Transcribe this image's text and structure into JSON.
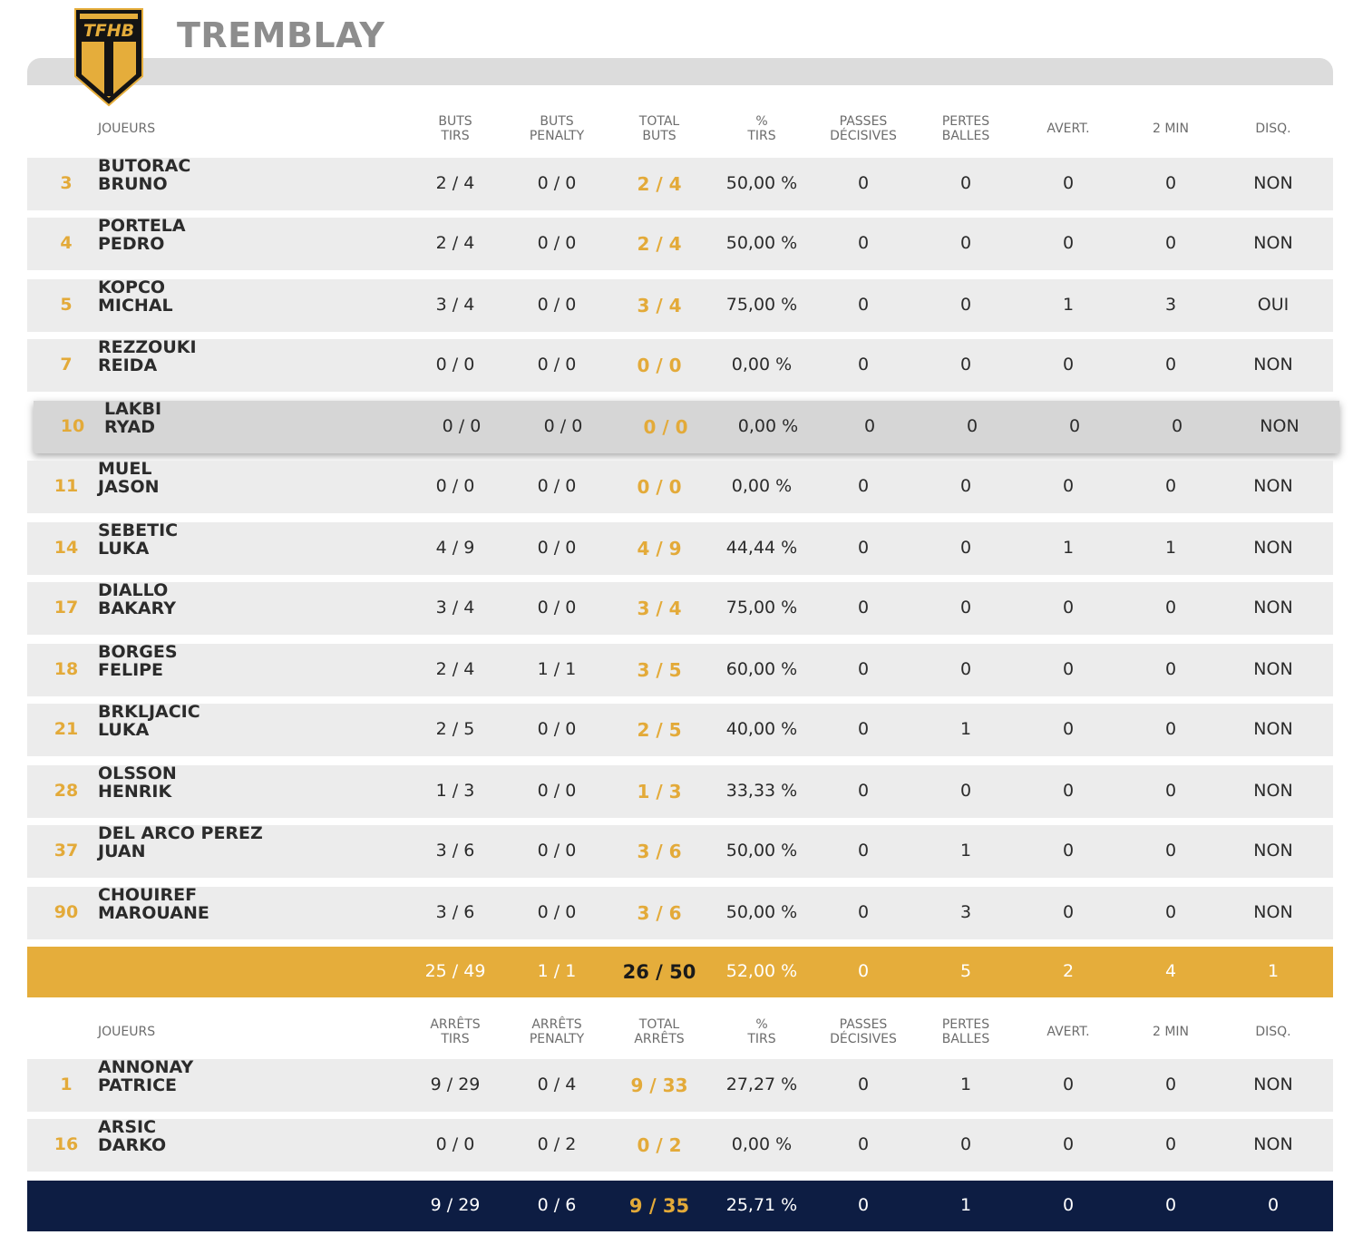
{
  "team": {
    "name": "TREMBLAY",
    "logo_text": "TFHB"
  },
  "players_header": {
    "joueurs": "JOUEURS",
    "cols": [
      [
        "BUTS",
        "TIRS"
      ],
      [
        "BUTS",
        "PENALTY"
      ],
      [
        "TOTAL",
        "BUTS"
      ],
      [
        "%",
        "TIRS"
      ],
      [
        "PASSES",
        "DÉCISIVES"
      ],
      [
        "PERTES",
        "BALLES"
      ],
      [
        "AVERT."
      ],
      [
        "2 MIN"
      ],
      [
        "DISQ."
      ]
    ]
  },
  "players": [
    {
      "num": "3",
      "last": "BUTORAC",
      "first": "BRUNO",
      "vals": [
        "2 / 4",
        "0 / 0",
        "2 / 4",
        "50,00 %",
        "0",
        "0",
        "0",
        "0",
        "NON"
      ]
    },
    {
      "num": "4",
      "last": "PORTELA",
      "first": "PEDRO",
      "vals": [
        "2 / 4",
        "0 / 0",
        "2 / 4",
        "50,00 %",
        "0",
        "0",
        "0",
        "0",
        "NON"
      ]
    },
    {
      "num": "5",
      "last": "KOPCO",
      "first": "MICHAL",
      "vals": [
        "3 / 4",
        "0 / 0",
        "3 / 4",
        "75,00 %",
        "0",
        "0",
        "1",
        "3",
        "OUI"
      ]
    },
    {
      "num": "7",
      "last": "REZZOUKI",
      "first": "REIDA",
      "vals": [
        "0 / 0",
        "0 / 0",
        "0 / 0",
        "0,00 %",
        "0",
        "0",
        "0",
        "0",
        "NON"
      ]
    },
    {
      "num": "10",
      "last": "LAKBI",
      "first": "RYAD",
      "vals": [
        "0 / 0",
        "0 / 0",
        "0 / 0",
        "0,00 %",
        "0",
        "0",
        "0",
        "0",
        "NON"
      ]
    },
    {
      "num": "11",
      "last": "MUEL",
      "first": "JASON",
      "vals": [
        "0 / 0",
        "0 / 0",
        "0 / 0",
        "0,00 %",
        "0",
        "0",
        "0",
        "0",
        "NON"
      ]
    },
    {
      "num": "14",
      "last": "SEBETIC",
      "first": "LUKA",
      "vals": [
        "4 / 9",
        "0 / 0",
        "4 / 9",
        "44,44 %",
        "0",
        "0",
        "1",
        "1",
        "NON"
      ]
    },
    {
      "num": "17",
      "last": "DIALLO",
      "first": "BAKARY",
      "vals": [
        "3 / 4",
        "0 / 0",
        "3 / 4",
        "75,00 %",
        "0",
        "0",
        "0",
        "0",
        "NON"
      ]
    },
    {
      "num": "18",
      "last": "BORGES",
      "first": "FELIPE",
      "vals": [
        "2 / 4",
        "1 / 1",
        "3 / 5",
        "60,00 %",
        "0",
        "0",
        "0",
        "0",
        "NON"
      ]
    },
    {
      "num": "21",
      "last": "BRKLJACIC",
      "first": "LUKA",
      "vals": [
        "2 / 5",
        "0 / 0",
        "2 / 5",
        "40,00 %",
        "0",
        "1",
        "0",
        "0",
        "NON"
      ]
    },
    {
      "num": "28",
      "last": "OLSSON",
      "first": "HENRIK",
      "vals": [
        "1 / 3",
        "0 / 0",
        "1 / 3",
        "33,33 %",
        "0",
        "0",
        "0",
        "0",
        "NON"
      ]
    },
    {
      "num": "37",
      "last": "DEL ARCO PEREZ",
      "first": "JUAN",
      "vals": [
        "3 / 6",
        "0 / 0",
        "3 / 6",
        "50,00 %",
        "0",
        "1",
        "0",
        "0",
        "NON"
      ]
    },
    {
      "num": "90",
      "last": "CHOUIREF",
      "first": "MAROUANE",
      "vals": [
        "3 / 6",
        "0 / 0",
        "3 / 6",
        "50,00 %",
        "0",
        "3",
        "0",
        "0",
        "NON"
      ]
    }
  ],
  "players_total": [
    "25 / 49",
    "1 / 1",
    "26 / 50",
    "52,00 %",
    "0",
    "5",
    "2",
    "4",
    "1"
  ],
  "keepers_header": {
    "joueurs": "JOUEURS",
    "cols": [
      [
        "ARRÊTS",
        "TIRS"
      ],
      [
        "ARRÊTS",
        "PENALTY"
      ],
      [
        "TOTAL",
        "ARRÊTS"
      ],
      [
        "%",
        "TIRS"
      ],
      [
        "PASSES",
        "DÉCISIVES"
      ],
      [
        "PERTES",
        "BALLES"
      ],
      [
        "AVERT."
      ],
      [
        "2 MIN"
      ],
      [
        "DISQ."
      ]
    ]
  },
  "keepers": [
    {
      "num": "1",
      "last": "ANNONAY",
      "first": "PATRICE",
      "vals": [
        "9 / 29",
        "0 / 4",
        "9 / 33",
        "27,27 %",
        "0",
        "1",
        "0",
        "0",
        "NON"
      ]
    },
    {
      "num": "16",
      "last": "ARSIC",
      "first": "DARKO",
      "vals": [
        "0 / 0",
        "0 / 2",
        "0 / 2",
        "0,00 %",
        "0",
        "0",
        "0",
        "0",
        "NON"
      ]
    }
  ],
  "keepers_total": [
    "9 / 29",
    "0 / 6",
    "9 / 35",
    "25,71 %",
    "0",
    "1",
    "0",
    "0",
    "0"
  ],
  "colors": {
    "accent": "#e5ad3b",
    "navy": "#0d1d43",
    "row_bg": "#ececec",
    "band": "#dcdcdc"
  }
}
